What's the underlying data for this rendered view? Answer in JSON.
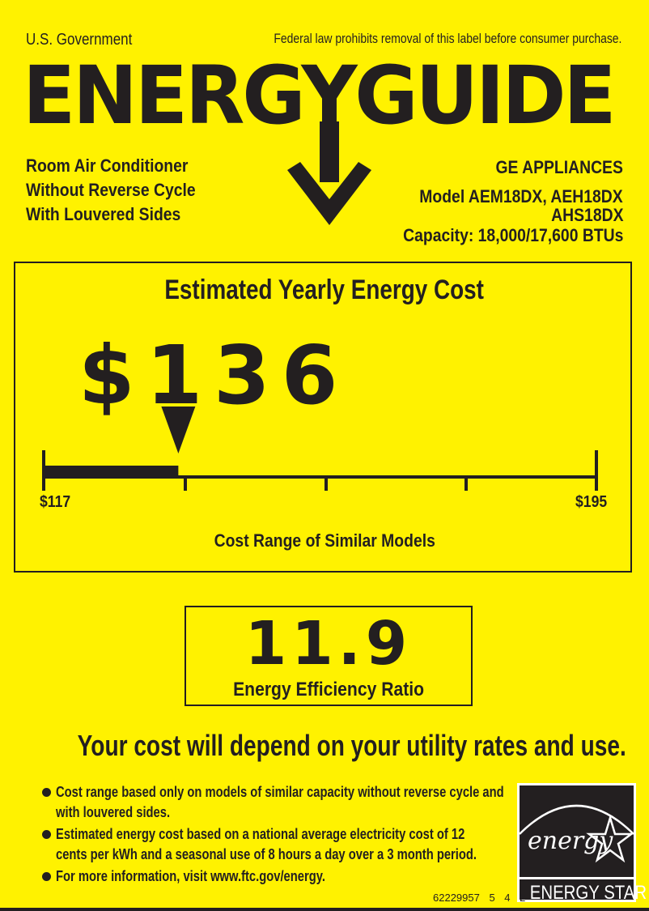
{
  "header": {
    "issuer": "U.S. Government",
    "notice": "Federal law prohibits removal of this label before consumer purchase.",
    "title": "ENERGYGUIDE"
  },
  "product": {
    "lines": [
      "Room Air Conditioner",
      "Without Reverse Cycle",
      "With Louvered Sides"
    ]
  },
  "manufacturer": {
    "name": "GE APPLIANCES",
    "model": "Model  AEM18DX, AEH18DX",
    "model2": "AHS18DX",
    "capacity": "Capacity: 18,000/17,600 BTUs"
  },
  "cost": {
    "title": "Estimated Yearly Energy Cost",
    "value": "$136",
    "amount": 136,
    "range_min": 117,
    "range_max": 195,
    "min_label": "$117",
    "max_label": "$195",
    "range_label": "Cost Range of Similar Models"
  },
  "efficiency": {
    "value": "11.9",
    "label": "Energy Efficiency Ratio"
  },
  "disclaimer": "Your cost will depend on your utility rates and use.",
  "bullets": [
    [
      "Cost range based only on models of similar capacity without reverse cycle and",
      "with louvered sides."
    ],
    [
      "Estimated energy cost based on a national average electricity cost of 12",
      "cents per kWh and a seasonal use of 8 hours a day over a 3 month period."
    ],
    [
      "For more information, visit www.ftc.gov/energy."
    ]
  ],
  "energy_star": {
    "script": "energy",
    "label": "ENERGY STAR"
  },
  "serial": "62229957   5   4   2",
  "colors": {
    "background": "#fff200",
    "ink": "#231f20"
  }
}
